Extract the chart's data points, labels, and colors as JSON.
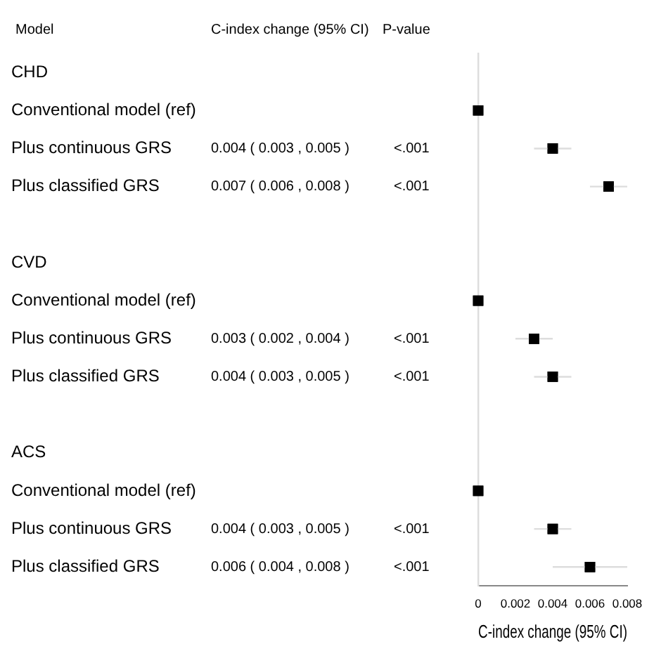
{
  "chart_data": {
    "type": "scatter",
    "orientation": "horizontal",
    "xlabel": "C-index change (95% CI)",
    "y_categories": [
      "CHD",
      "Conventional model (ref)",
      "Plus continuous GRS",
      "Plus classified GRS",
      null,
      "CVD",
      "Conventional model (ref)",
      "Plus continuous GRS",
      "Plus classified GRS",
      null,
      "ACS",
      "Conventional model (ref)",
      "Plus continuous GRS",
      "Plus classified GRS"
    ],
    "series": [
      {
        "color": "#000000",
        "marker": "square",
        "values": [
          null,
          0,
          0.004,
          0.007,
          null,
          null,
          0,
          0.003,
          0.004,
          null,
          null,
          0,
          0.004,
          0.006
        ],
        "errors": [
          null,
          null,
          [
            0.003,
            0.005
          ],
          [
            0.006,
            0.008
          ],
          null,
          null,
          null,
          [
            0.002,
            0.004
          ],
          [
            0.003,
            0.005
          ],
          null,
          null,
          null,
          [
            0.003,
            0.005
          ],
          [
            0.004,
            0.008
          ]
        ],
        "value_labels": [
          null,
          null,
          "0.004 ( 0.003 , 0.005 )",
          "0.007 ( 0.006 , 0.008 )",
          null,
          null,
          null,
          "0.003 ( 0.002 , 0.004 )",
          "0.004 ( 0.003 , 0.005 )",
          null,
          null,
          null,
          "0.004 ( 0.003 , 0.005 )",
          "0.006 ( 0.004 , 0.008 )"
        ]
      }
    ],
    "xlim": [
      0,
      0.008
    ],
    "xticks": [
      0,
      0.002,
      0.004,
      0.006,
      0.008
    ],
    "grid": false,
    "legend": false,
    "annotations": [
      "Model",
      "C-index change (95% CI)",
      "P-value",
      "<.001",
      "<.001",
      "<.001",
      "<.001",
      "<.001",
      "<.001"
    ]
  }
}
